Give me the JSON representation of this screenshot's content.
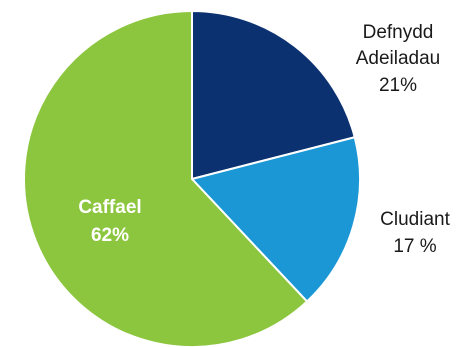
{
  "chart_data": {
    "type": "pie",
    "title": "",
    "legend": "none",
    "slices": [
      {
        "name": "Defnydd Adeiladau",
        "label_lines": [
          "Defnydd",
          "Adeiladau"
        ],
        "value": 21,
        "value_label": "21%",
        "color": "#0b3170"
      },
      {
        "name": "Cludiant",
        "label_lines": [
          "Cludiant"
        ],
        "value": 17,
        "value_label": "17 %",
        "color": "#1b97d6"
      },
      {
        "name": "Caffael",
        "label_lines": [
          "Caffael"
        ],
        "value": 62,
        "value_label": "62%",
        "color": "#8cc63f"
      }
    ]
  }
}
